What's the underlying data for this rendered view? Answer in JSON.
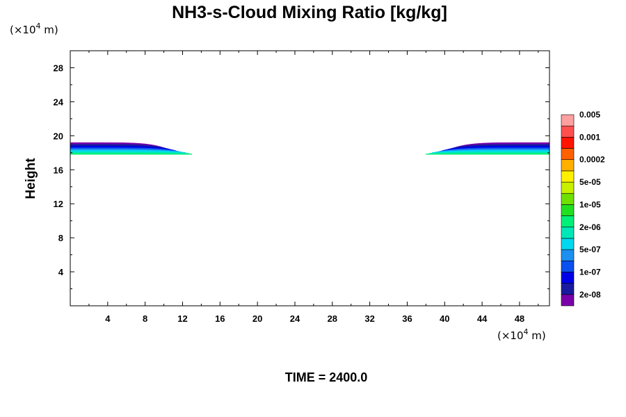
{
  "chart_data": {
    "type": "contour",
    "title": "NH3-s-Cloud Mixing Ratio [kg/kg]",
    "ylabel": "Height",
    "x_unit": {
      "prefix": "(×10",
      "exp": "4",
      "suffix": " m)"
    },
    "y_unit": {
      "prefix": "(×10",
      "exp": "4",
      "suffix": " m)"
    },
    "xlim": [
      0,
      51.2
    ],
    "ylim": [
      0,
      30
    ],
    "x_ticks": [
      4,
      8,
      12,
      16,
      20,
      24,
      28,
      32,
      36,
      40,
      44,
      48
    ],
    "y_ticks": [
      4,
      8,
      12,
      16,
      20,
      24,
      28
    ],
    "time_label": "TIME = 2400.0",
    "colorbar": {
      "colors": [
        "#7a00aa",
        "#1a1a9e",
        "#0000e6",
        "#0a4ff0",
        "#1c8ff0",
        "#00d8f0",
        "#00e8b8",
        "#00f078",
        "#22e020",
        "#70e000",
        "#c8f000",
        "#fff000",
        "#ffb000",
        "#ff6000",
        "#ff1400",
        "#ff5050",
        "#ffa0a0"
      ],
      "tick_labels": [
        "2e-08",
        "1e-07",
        "5e-07",
        "2e-06",
        "1e-05",
        "5e-05",
        "0.0002",
        "0.001",
        "0.005"
      ]
    },
    "regions": [
      {
        "name": "left-cloud-layer",
        "x_range": [
          0,
          13
        ],
        "band_bottom": 17.8,
        "band_top": 19.2,
        "layers": [
          {
            "color": "#7a00aa",
            "bottom": 19.0,
            "top": 19.2
          },
          {
            "color": "#1a1a9e",
            "bottom": 18.8,
            "top": 19.0
          },
          {
            "color": "#0000e6",
            "bottom": 18.6,
            "top": 18.8
          },
          {
            "color": "#0a4ff0",
            "bottom": 18.45,
            "top": 18.6
          },
          {
            "color": "#1c8ff0",
            "bottom": 18.3,
            "top": 18.45
          },
          {
            "color": "#00d8f0",
            "bottom": 18.1,
            "top": 18.3
          },
          {
            "color": "#00e8b8",
            "bottom": 17.95,
            "top": 18.1
          },
          {
            "color": "#00f078",
            "bottom": 17.8,
            "top": 17.95
          }
        ]
      },
      {
        "name": "right-cloud-layer",
        "x_range": [
          38,
          51.2
        ],
        "band_bottom": 17.8,
        "band_top": 19.2,
        "layers": [
          {
            "color": "#7a00aa",
            "bottom": 19.0,
            "top": 19.2
          },
          {
            "color": "#1a1a9e",
            "bottom": 18.8,
            "top": 19.0
          },
          {
            "color": "#0000e6",
            "bottom": 18.6,
            "top": 18.8
          },
          {
            "color": "#0a4ff0",
            "bottom": 18.45,
            "top": 18.6
          },
          {
            "color": "#1c8ff0",
            "bottom": 18.3,
            "top": 18.45
          },
          {
            "color": "#00d8f0",
            "bottom": 18.1,
            "top": 18.3
          },
          {
            "color": "#00e8b8",
            "bottom": 17.95,
            "top": 18.1
          },
          {
            "color": "#00f078",
            "bottom": 17.8,
            "top": 17.95
          }
        ]
      }
    ]
  }
}
